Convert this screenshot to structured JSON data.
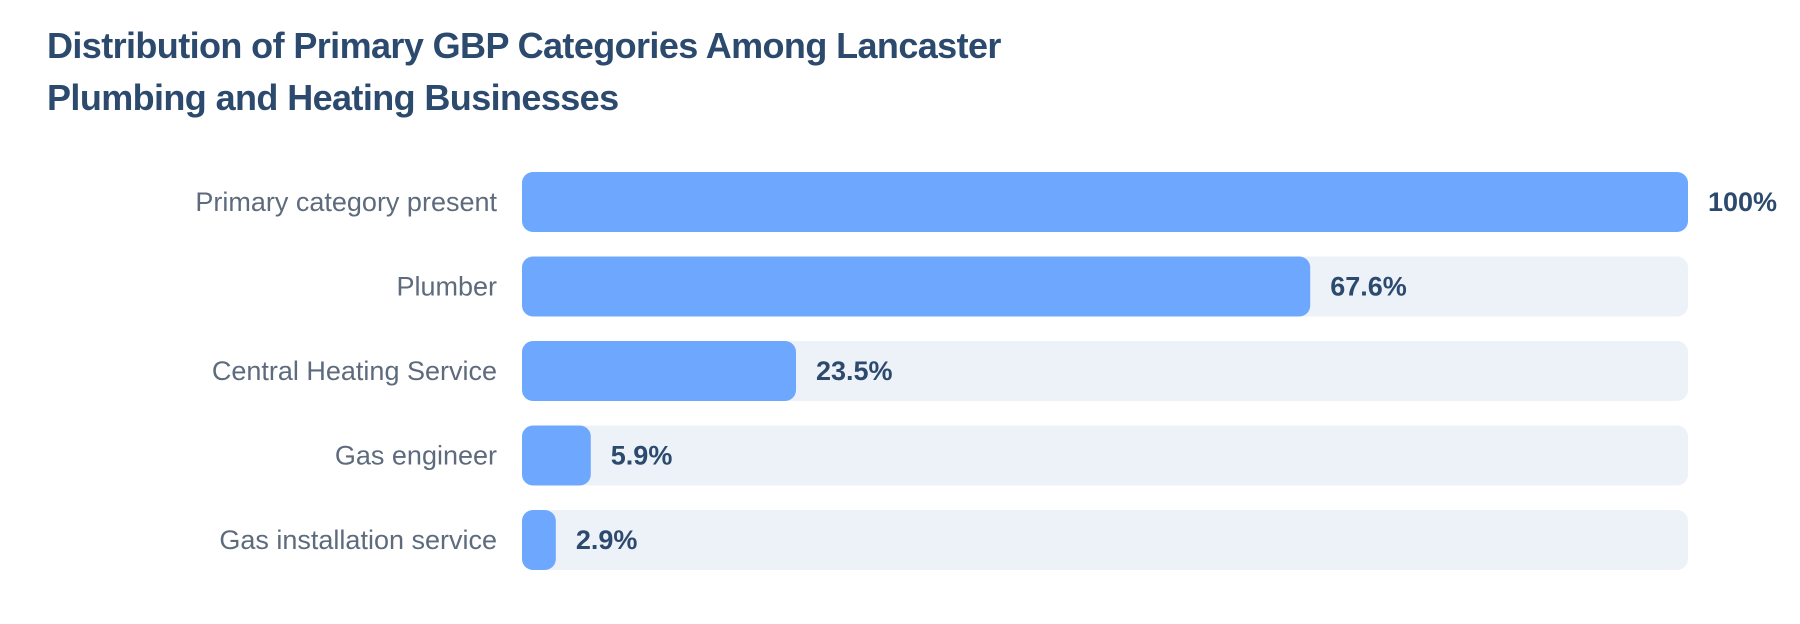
{
  "chart_data": {
    "type": "bar",
    "orientation": "horizontal",
    "title": "Distribution of Primary GBP Categories Among Lancaster Plumbing and Heating Businesses",
    "categories": [
      "Primary category present",
      "Plumber",
      "Central Heating Service",
      "Gas engineer",
      "Gas installation service"
    ],
    "values": [
      100,
      67.6,
      23.5,
      5.9,
      2.9
    ],
    "value_labels": [
      "100%",
      "67.6%",
      "23.5%",
      "5.9%",
      "2.9%"
    ],
    "xlim": [
      0,
      100
    ],
    "unit": "%",
    "grid": false,
    "legend": "none",
    "colors": {
      "bar": "#6ea8fe",
      "track": "#edf2f9",
      "value_text": "#2c4a6e",
      "category_text": "#5d6b7d",
      "title": "#2c4a6e"
    }
  }
}
